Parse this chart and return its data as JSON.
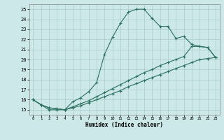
{
  "bg_color": "#cce8e8",
  "grid_color": "#aacccc",
  "line_color": "#2a6e60",
  "xlabel": "Humidex (Indice chaleur)",
  "xlim": [
    -0.5,
    23.5
  ],
  "ylim": [
    14.5,
    25.5
  ],
  "yticks": [
    15,
    16,
    17,
    18,
    19,
    20,
    21,
    22,
    23,
    24,
    25
  ],
  "xticks": [
    0,
    1,
    2,
    3,
    4,
    5,
    6,
    7,
    8,
    9,
    10,
    11,
    12,
    13,
    14,
    15,
    16,
    17,
    18,
    19,
    20,
    21,
    22,
    23
  ],
  "curve1_x": [
    0,
    1,
    2,
    3,
    4,
    5,
    6,
    7,
    8,
    9,
    10,
    11,
    12,
    13,
    14,
    15,
    16,
    17,
    18,
    19,
    20,
    21,
    22,
    23
  ],
  "curve1_y": [
    16.0,
    15.5,
    15.0,
    15.0,
    15.0,
    15.8,
    16.2,
    16.8,
    17.7,
    20.5,
    22.2,
    23.6,
    24.7,
    25.0,
    25.0,
    24.1,
    23.3,
    23.3,
    22.1,
    22.3,
    21.5,
    21.3,
    21.2,
    20.2
  ],
  "curve2_x": [
    0,
    1,
    2,
    3,
    4,
    5,
    6,
    7,
    8,
    9,
    10,
    11,
    12,
    13,
    14,
    15,
    16,
    17,
    18,
    19,
    20,
    21,
    22,
    23
  ],
  "curve2_y": [
    16.0,
    15.5,
    15.2,
    15.1,
    15.0,
    15.3,
    15.6,
    15.9,
    16.3,
    16.7,
    17.1,
    17.5,
    17.9,
    18.3,
    18.7,
    19.0,
    19.4,
    19.7,
    20.0,
    20.3,
    21.3,
    21.3,
    21.2,
    20.2
  ],
  "curve3_x": [
    0,
    1,
    2,
    3,
    4,
    5,
    6,
    7,
    8,
    9,
    10,
    11,
    12,
    13,
    14,
    15,
    16,
    17,
    18,
    19,
    20,
    21,
    22,
    23
  ],
  "curve3_y": [
    16.0,
    15.5,
    15.2,
    15.1,
    15.0,
    15.2,
    15.4,
    15.7,
    16.0,
    16.3,
    16.6,
    16.9,
    17.3,
    17.6,
    17.9,
    18.2,
    18.5,
    18.8,
    19.1,
    19.4,
    19.7,
    20.0,
    20.1,
    20.2
  ]
}
